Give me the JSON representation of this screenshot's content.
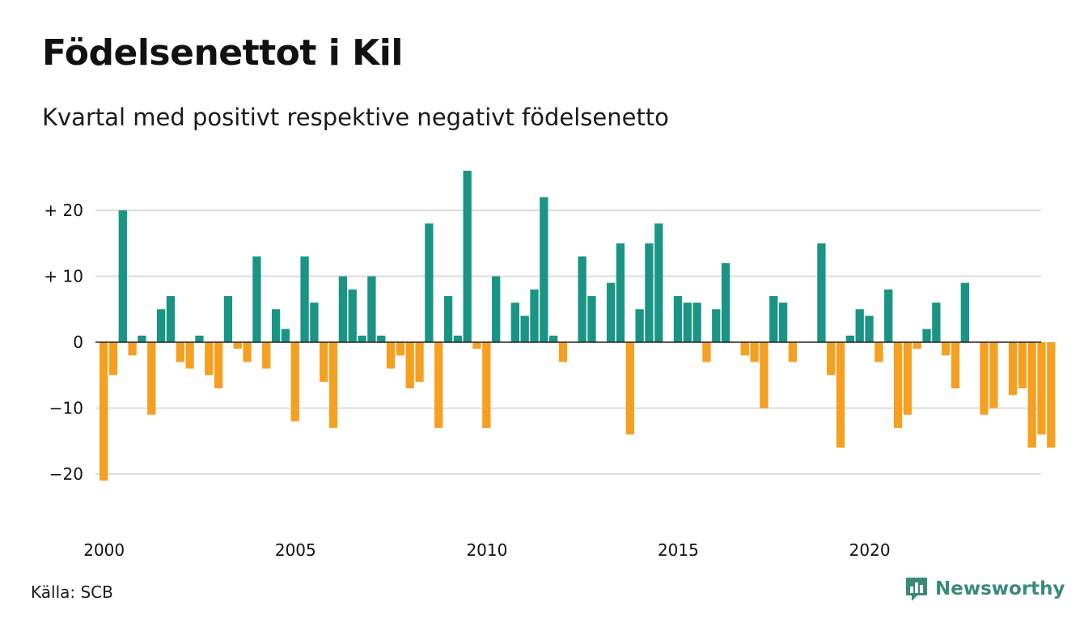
{
  "title": "Födelsenettot i Kil",
  "subtitle": "Kvartal med positivt respektive negativt födelsenetto",
  "source": "Källa: SCB",
  "brand": {
    "name": "Newsworthy",
    "icon": "newsworthy-logo-icon",
    "color": "#3a8a78"
  },
  "colors": {
    "positive": "#1a9484",
    "negative": "#f5a020",
    "grid": "#dddddd",
    "zero_line": "#222222"
  },
  "chart_data": {
    "type": "bar",
    "title": "Födelsenettot i Kil",
    "subtitle": "Kvartal med positivt respektive negativt födelsenetto",
    "xlabel": "",
    "ylabel": "",
    "x_start": "2000 Q1",
    "frequency": "quarterly",
    "ylim": [
      -25,
      27
    ],
    "y_ticks": [
      20,
      10,
      0,
      -10,
      -20
    ],
    "y_tick_labels": [
      "+ 20",
      "+ 10",
      "0",
      "−10",
      "−20"
    ],
    "x_ticks": [
      2000,
      2005,
      2010,
      2015,
      2020
    ],
    "x_tick_labels": [
      "2000",
      "2005",
      "2010",
      "2015",
      "2020"
    ],
    "grid": true,
    "values": [
      -21,
      -5,
      20,
      -2,
      1,
      -11,
      5,
      7,
      -3,
      -4,
      1,
      -5,
      -7,
      7,
      -1,
      -3,
      13,
      -4,
      5,
      2,
      -12,
      13,
      6,
      -6,
      -13,
      10,
      8,
      1,
      10,
      1,
      -4,
      -2,
      -7,
      -6,
      18,
      -13,
      7,
      1,
      26,
      -1,
      -13,
      10,
      0,
      6,
      4,
      8,
      22,
      1,
      -3,
      0,
      13,
      7,
      0,
      9,
      15,
      -14,
      5,
      15,
      18,
      0,
      7,
      6,
      6,
      -3,
      5,
      12,
      0,
      -2,
      -3,
      -10,
      7,
      6,
      -3,
      0,
      0,
      15,
      -5,
      -16,
      1,
      5,
      4,
      -3,
      8,
      -13,
      -11,
      -1,
      2,
      6,
      -2,
      -7,
      9,
      0,
      -11,
      -10,
      0,
      -8,
      -7,
      -16,
      -14,
      -16
    ]
  }
}
